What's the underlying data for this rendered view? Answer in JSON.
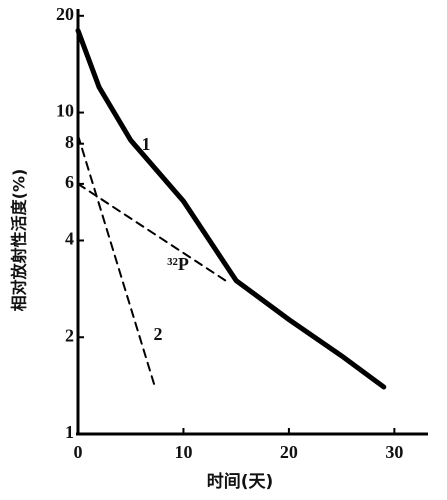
{
  "chart_data": {
    "type": "line",
    "y_label": "相对放射性活度(%)",
    "x_label": "时间(天)",
    "log_y": true,
    "xlim": [
      0,
      33
    ],
    "xticks": [
      0,
      10,
      20,
      30
    ],
    "ylim": [
      1,
      21
    ],
    "yticks": [
      1,
      2,
      4,
      6,
      8,
      10,
      20
    ],
    "series": [
      {
        "name": "1",
        "color": "#000000",
        "style": "solid",
        "width": 5,
        "x": [
          0,
          2,
          5,
          10,
          15,
          20,
          25,
          29
        ],
        "values": [
          18,
          12,
          8.2,
          5.3,
          3.0,
          2.27,
          1.75,
          1.4
        ]
      },
      {
        "name": "³²P",
        "color": "#000000",
        "style": "dashed",
        "width": 2,
        "x": [
          0,
          14
        ],
        "values": [
          6,
          3
        ]
      },
      {
        "name": "2",
        "color": "#000000",
        "style": "dashed",
        "width": 2,
        "x": [
          0,
          7.3
        ],
        "values": [
          8.5,
          1.4
        ]
      }
    ]
  }
}
